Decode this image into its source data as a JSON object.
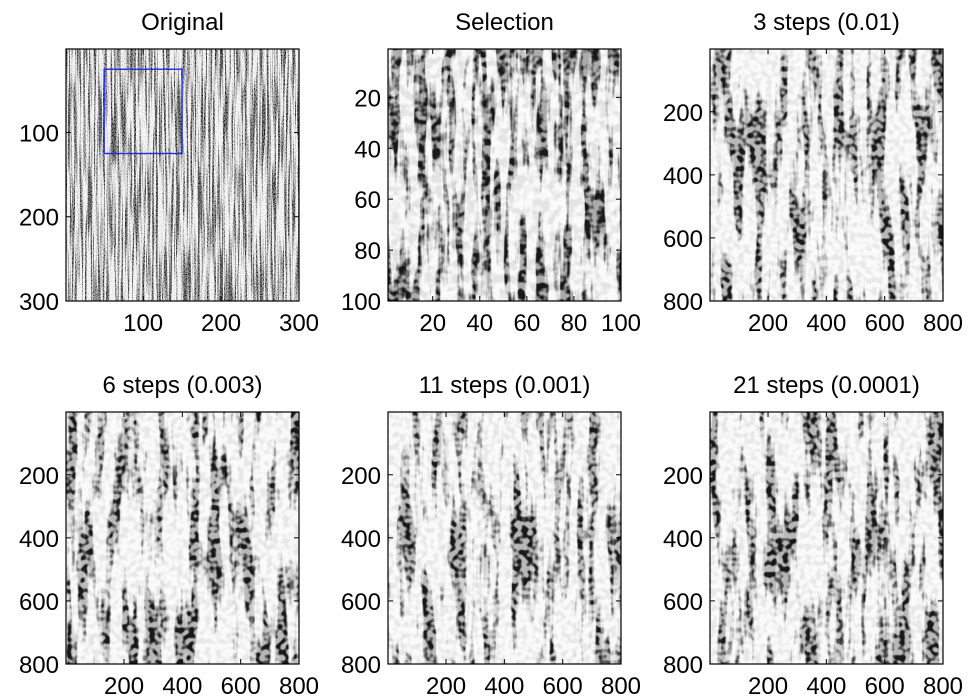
{
  "figure": {
    "background": "#ffffff",
    "colormap": "grayscale (dark = high density)",
    "selection_color": "#1f2dd8"
  },
  "chart_data": [
    {
      "type": "heatmap",
      "title": "Original",
      "xlabel": "",
      "ylabel": "",
      "xlim": [
        1,
        300
      ],
      "ylim": [
        1,
        300
      ],
      "xticks": [
        "100",
        "200",
        "300"
      ],
      "xtick_values": [
        100,
        200,
        300
      ],
      "yticks": [
        "100",
        "200",
        "300"
      ],
      "ytick_values": [
        100,
        200,
        300
      ],
      "y_direction": "reverse",
      "selection_box": {
        "x": [
          50,
          150
        ],
        "y": [
          25,
          125
        ]
      }
    },
    {
      "type": "heatmap",
      "title": "Selection",
      "xlabel": "",
      "ylabel": "",
      "xlim": [
        1,
        100
      ],
      "ylim": [
        1,
        100
      ],
      "xticks": [
        "20",
        "40",
        "60",
        "80",
        "100"
      ],
      "xtick_values": [
        20,
        40,
        60,
        80,
        100
      ],
      "yticks": [
        "20",
        "40",
        "60",
        "80",
        "100"
      ],
      "ytick_values": [
        20,
        40,
        60,
        80,
        100
      ],
      "y_direction": "reverse"
    },
    {
      "type": "heatmap",
      "title": "3 steps (0.01)",
      "xlabel": "",
      "ylabel": "",
      "xlim": [
        1,
        800
      ],
      "ylim": [
        1,
        800
      ],
      "xticks": [
        "200",
        "400",
        "600",
        "800"
      ],
      "xtick_values": [
        200,
        400,
        600,
        800
      ],
      "yticks": [
        "200",
        "400",
        "600",
        "800"
      ],
      "ytick_values": [
        200,
        400,
        600,
        800
      ],
      "y_direction": "reverse"
    },
    {
      "type": "heatmap",
      "title": "6 steps (0.003)",
      "xlabel": "",
      "ylabel": "",
      "xlim": [
        1,
        800
      ],
      "ylim": [
        1,
        800
      ],
      "xticks": [
        "200",
        "400",
        "600",
        "800"
      ],
      "xtick_values": [
        200,
        400,
        600,
        800
      ],
      "yticks": [
        "200",
        "400",
        "600",
        "800"
      ],
      "ytick_values": [
        200,
        400,
        600,
        800
      ],
      "y_direction": "reverse"
    },
    {
      "type": "heatmap",
      "title": "11 steps (0.001)",
      "xlabel": "",
      "ylabel": "",
      "xlim": [
        1,
        800
      ],
      "ylim": [
        1,
        800
      ],
      "xticks": [
        "200",
        "400",
        "600",
        "800"
      ],
      "xtick_values": [
        200,
        400,
        600,
        800
      ],
      "yticks": [
        "200",
        "400",
        "600",
        "800"
      ],
      "ytick_values": [
        200,
        400,
        600,
        800
      ],
      "y_direction": "reverse"
    },
    {
      "type": "heatmap",
      "title": "21 steps (0.0001)",
      "xlabel": "",
      "ylabel": "",
      "xlim": [
        1,
        800
      ],
      "ylim": [
        1,
        800
      ],
      "xticks": [
        "200",
        "400",
        "600",
        "800"
      ],
      "xtick_values": [
        200,
        400,
        600,
        800
      ],
      "yticks": [
        "200",
        "400",
        "600",
        "800"
      ],
      "ytick_values": [
        200,
        400,
        600,
        800
      ],
      "y_direction": "reverse"
    }
  ]
}
